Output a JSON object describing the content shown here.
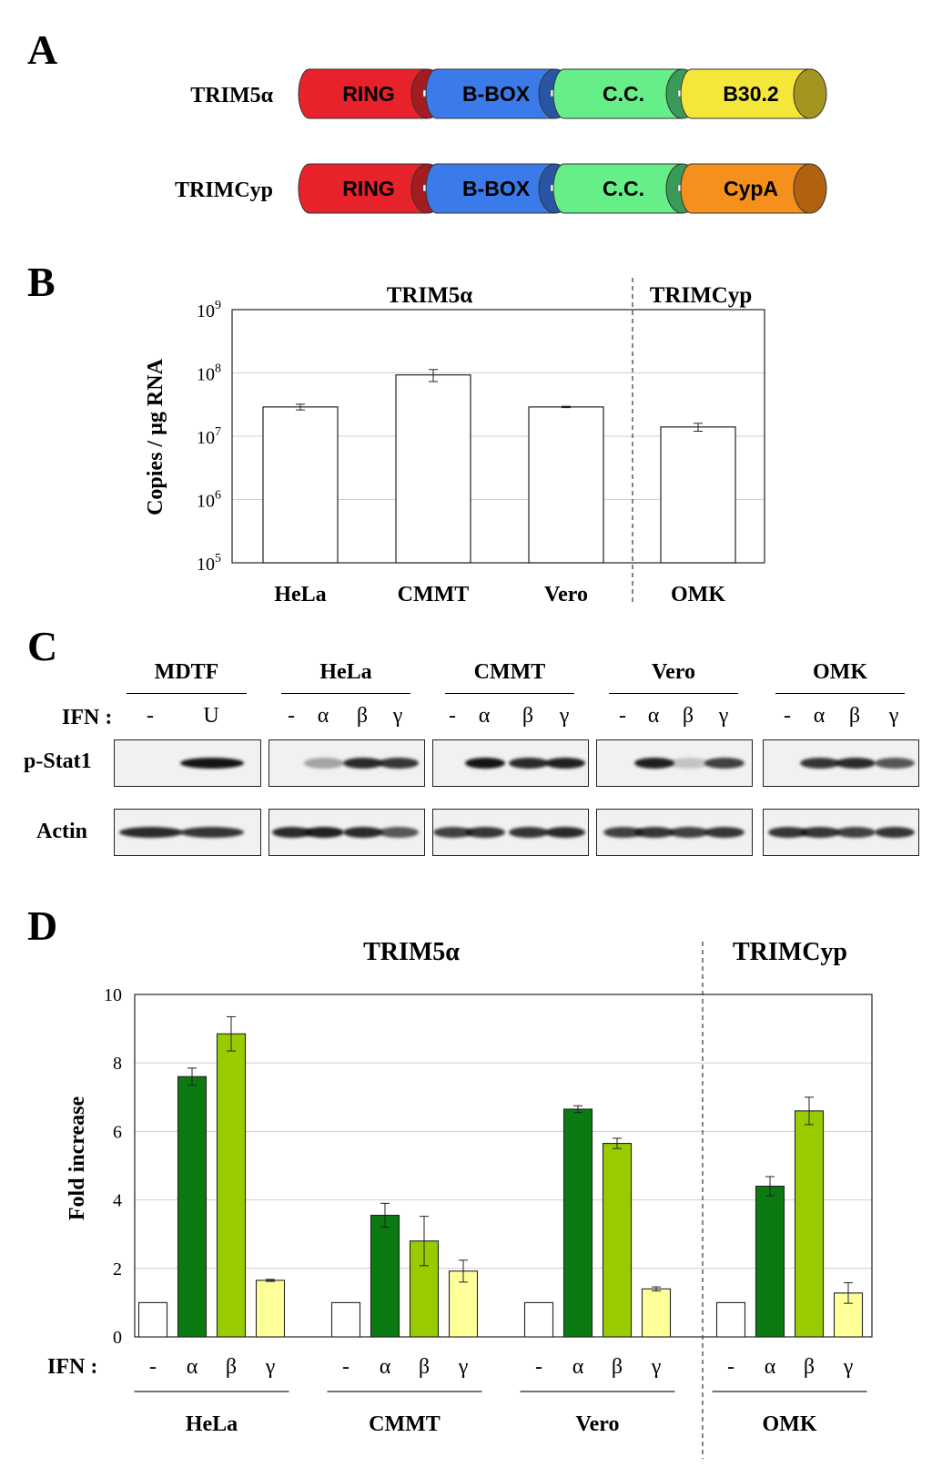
{
  "panels": {
    "a": "A",
    "b": "B",
    "c": "C",
    "d": "D"
  },
  "panel_a": {
    "proteins": [
      {
        "name": "TRIM5α",
        "domains": [
          {
            "label": "RING",
            "color": "#e8222a",
            "cap": "#a51c20"
          },
          {
            "label": "B-BOX",
            "color": "#3b7be9",
            "cap": "#2a55a5"
          },
          {
            "label": "C.C.",
            "color": "#66ee88",
            "cap": "#3a9a58"
          },
          {
            "label": "B30.2",
            "color": "#f5e63a",
            "cap": "#a39520"
          }
        ]
      },
      {
        "name": "TRIMCyp",
        "domains": [
          {
            "label": "RING",
            "color": "#e8222a",
            "cap": "#a51c20"
          },
          {
            "label": "B-BOX",
            "color": "#3b7be9",
            "cap": "#2a55a5"
          },
          {
            "label": "C.C.",
            "color": "#66ee88",
            "cap": "#3a9a58"
          },
          {
            "label": "CypA",
            "color": "#f6901c",
            "cap": "#b0620f"
          }
        ]
      }
    ]
  },
  "panel_c": {
    "ifn_label": "IFN :",
    "rows": [
      "p-Stat1",
      "Actin"
    ],
    "groups": [
      {
        "name": "MDTF",
        "lanes": [
          "-",
          "U"
        ]
      },
      {
        "name": "HeLa",
        "lanes": [
          "-",
          "α",
          "β",
          "γ"
        ]
      },
      {
        "name": "CMMT",
        "lanes": [
          "-",
          "α",
          "β",
          "γ"
        ]
      },
      {
        "name": "Vero",
        "lanes": [
          "-",
          "α",
          "β",
          "γ"
        ]
      },
      {
        "name": "OMK",
        "lanes": [
          "-",
          "α",
          "β",
          "γ"
        ]
      }
    ]
  },
  "chart_data": [
    {
      "type": "bar",
      "ylabel": "Copies / µg RNA",
      "yscale": "log",
      "ylim": [
        100000,
        1000000000
      ],
      "yticks": [
        {
          "base": "10",
          "exp": "5"
        },
        {
          "base": "10",
          "exp": "6"
        },
        {
          "base": "10",
          "exp": "7"
        },
        {
          "base": "10",
          "exp": "8"
        },
        {
          "base": "10",
          "exp": "9"
        }
      ],
      "grid": true,
      "group_labels": [
        "TRIM5α",
        "TRIMCyp"
      ],
      "categories": [
        "HeLa",
        "CMMT",
        "Vero",
        "OMK"
      ],
      "values": [
        29000000,
        93000000,
        29000000,
        14000000
      ],
      "errors": [
        3000000,
        20000000,
        700000,
        2000000
      ],
      "bar_color": "#ffffff"
    },
    {
      "type": "bar",
      "ylabel": "Fold increase",
      "ylim": [
        0,
        10
      ],
      "yticks": [
        "0",
        "2",
        "4",
        "6",
        "8",
        "10"
      ],
      "grid": true,
      "group_labels": [
        "TRIM5α",
        "TRIMCyp"
      ],
      "xlabel_prefix": "IFN :",
      "categories": [
        "HeLa",
        "CMMT",
        "Vero",
        "OMK"
      ],
      "treatments": [
        "-",
        "α",
        "β",
        "γ"
      ],
      "colors": [
        "#ffffff",
        "#0b7a12",
        "#99cc00",
        "#ffff99"
      ],
      "values": [
        [
          1,
          7.6,
          8.85,
          1.65
        ],
        [
          1,
          3.55,
          2.8,
          1.92
        ],
        [
          1,
          6.65,
          5.65,
          1.4
        ],
        [
          1,
          4.4,
          6.6,
          1.28
        ]
      ],
      "errors": [
        [
          0,
          0.25,
          0.5,
          0.03
        ],
        [
          0,
          0.35,
          0.72,
          0.32
        ],
        [
          0,
          0.1,
          0.15,
          0.06
        ],
        [
          0,
          0.28,
          0.4,
          0.3
        ]
      ]
    }
  ]
}
